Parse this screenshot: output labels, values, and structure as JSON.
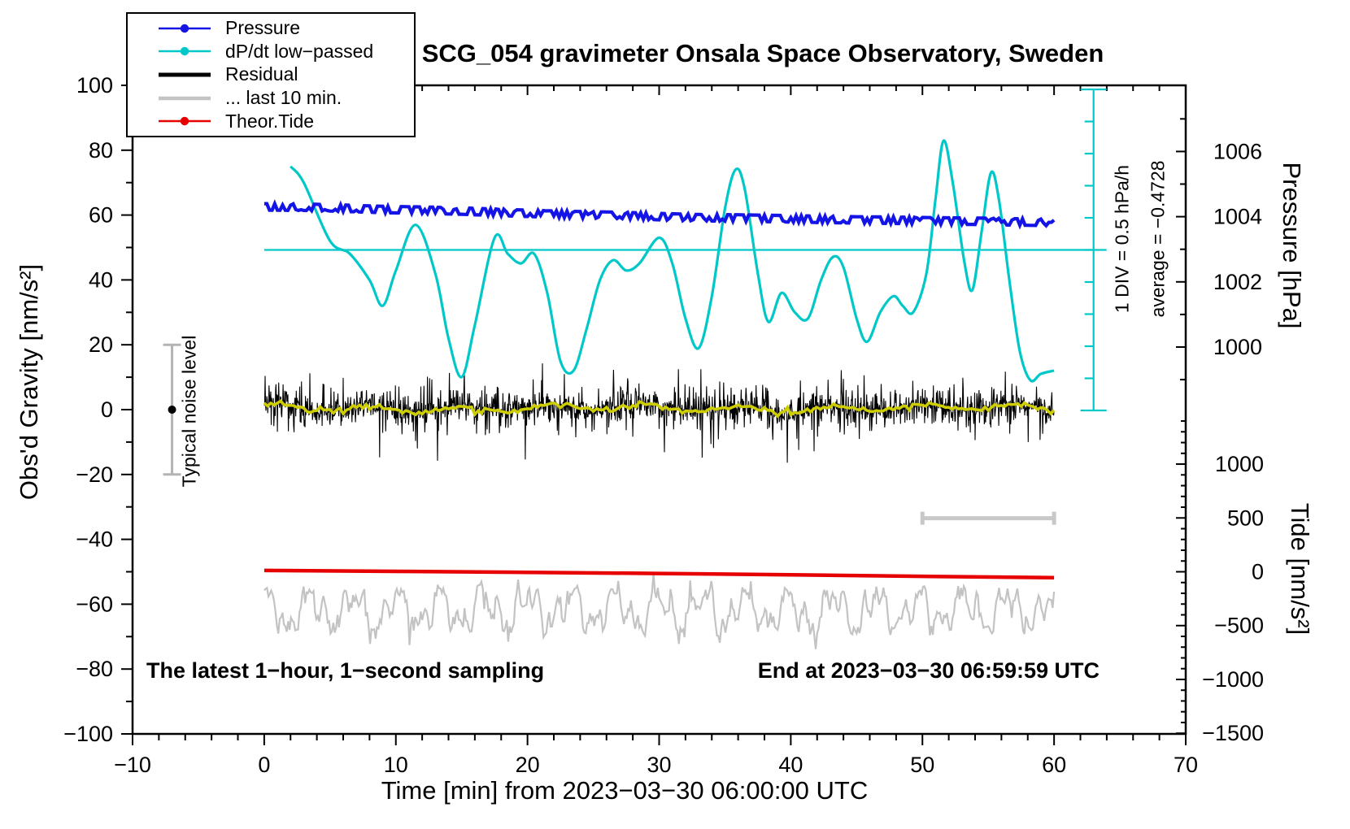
{
  "title": "SCG_054 gravimeter Onsala Space Observatory, Sweden",
  "legend": {
    "items": [
      {
        "label": "Pressure",
        "color": "#1414e6",
        "marker": true,
        "line_width": 2.5
      },
      {
        "label": "dP/dt low−passed",
        "color": "#00c8c8",
        "marker": true,
        "line_width": 2.5
      },
      {
        "label": "Residual",
        "color": "#000000",
        "marker": false,
        "line_width": 5
      },
      {
        "label": "... last 10 min.",
        "color": "#c3c3c3",
        "marker": false,
        "line_width": 4.5
      },
      {
        "label": "Theor.Tide",
        "color": "#e60000",
        "marker": true,
        "line_width": 2.5
      }
    ]
  },
  "notes": {
    "bottom_left": "The latest 1−hour, 1−second sampling",
    "bottom_right": "End at 2023−03−30 06:59:59 UTC"
  },
  "chart_data": {
    "type": "line",
    "title": "SCG_054 gravimeter Onsala Space Observatory, Sweden",
    "xlabel": "Time [min] from 2023−03−30 06:00:00 UTC",
    "grid": false,
    "legend_position": "top-left",
    "x_axis": {
      "range": [
        -10,
        70
      ],
      "major_tick": 10,
      "minor_tick": 2
    },
    "y_left": {
      "label": "Obs'd Gravity [nm/s²]",
      "range": [
        -100,
        100
      ],
      "major_tick": 20,
      "minor_tick": 10
    },
    "y_right_pressure": {
      "label": "Pressure [hPa]",
      "major_ticks": [
        1006,
        1004,
        1002,
        1000
      ],
      "minor_step": 1,
      "minor_range": [
        999,
        1007
      ],
      "gravity_map": {
        "p_ref": 1004,
        "g_ref": 59.5,
        "g_per_hpa": 10.05
      }
    },
    "y_right_tide": {
      "label": "Tide [nm/s²]",
      "major_ticks": [
        1000,
        500,
        0,
        -500,
        -1000,
        -1500
      ],
      "minor_step": 100,
      "minor_range": [
        -1500,
        1400
      ],
      "gravity_map": {
        "t_ref": 0,
        "g_ref": -50,
        "g_per_500": 16.6
      }
    },
    "series": {
      "pressure": {
        "name": "Pressure",
        "unit": "hPa",
        "color": "#1414e6",
        "points_t_hpa": [
          [
            0,
            1004.3
          ],
          [
            3,
            1004.29
          ],
          [
            6,
            1004.26
          ],
          [
            9,
            1004.22
          ],
          [
            12,
            1004.2
          ],
          [
            15,
            1004.17
          ],
          [
            18,
            1004.13
          ],
          [
            21,
            1004.09
          ],
          [
            24,
            1004.06
          ],
          [
            27,
            1004.04
          ],
          [
            30,
            1004.0
          ],
          [
            33,
            1003.97
          ],
          [
            36,
            1003.96
          ],
          [
            39,
            1003.94
          ],
          [
            42,
            1003.92
          ],
          [
            45,
            1003.9
          ],
          [
            48,
            1003.89
          ],
          [
            51,
            1003.87
          ],
          [
            54,
            1003.86
          ],
          [
            57,
            1003.84
          ],
          [
            60,
            1003.82
          ]
        ]
      },
      "dpdt": {
        "name": "dP/dt low−passed",
        "unit": "hPa/h",
        "color": "#00c8c8",
        "gravity_map": {
          "v_ref": 0,
          "g_ref": 49.25,
          "g_per_unit": 19.8
        },
        "points_t_hpah": [
          [
            2,
            1.3
          ],
          [
            3,
            1.05
          ],
          [
            5,
            0.14
          ],
          [
            6.5,
            -0.06
          ],
          [
            8,
            -0.47
          ],
          [
            9,
            -0.87
          ],
          [
            10,
            -0.32
          ],
          [
            11.5,
            0.39
          ],
          [
            13,
            -0.37
          ],
          [
            14,
            -1.38
          ],
          [
            15,
            -1.98
          ],
          [
            16,
            -1.17
          ],
          [
            17.5,
            0.19
          ],
          [
            18.5,
            -0.06
          ],
          [
            19.5,
            -0.21
          ],
          [
            20.5,
            -0.06
          ],
          [
            21.5,
            -0.67
          ],
          [
            22.5,
            -1.73
          ],
          [
            23.5,
            -1.88
          ],
          [
            24.5,
            -1.22
          ],
          [
            25.5,
            -0.47
          ],
          [
            26.5,
            -0.16
          ],
          [
            27.5,
            -0.32
          ],
          [
            28.5,
            -0.21
          ],
          [
            30,
            0.19
          ],
          [
            31,
            -0.21
          ],
          [
            32,
            -1.07
          ],
          [
            33,
            -1.53
          ],
          [
            34,
            -0.72
          ],
          [
            35,
            0.64
          ],
          [
            35.8,
            1.25
          ],
          [
            36.5,
            0.95
          ],
          [
            37.5,
            -0.37
          ],
          [
            38.3,
            -1.12
          ],
          [
            39.3,
            -0.67
          ],
          [
            40.3,
            -0.97
          ],
          [
            41.3,
            -1.07
          ],
          [
            42.3,
            -0.47
          ],
          [
            43.2,
            -0.11
          ],
          [
            44,
            -0.27
          ],
          [
            45,
            -1.07
          ],
          [
            45.8,
            -1.43
          ],
          [
            46.8,
            -0.97
          ],
          [
            47.8,
            -0.72
          ],
          [
            48.5,
            -0.87
          ],
          [
            49.3,
            -0.97
          ],
          [
            50.3,
            -0.37
          ],
          [
            51,
            0.8
          ],
          [
            51.6,
            1.7
          ],
          [
            52.3,
            1.05
          ],
          [
            53.2,
            -0.21
          ],
          [
            53.8,
            -0.62
          ],
          [
            54.5,
            0.29
          ],
          [
            55.2,
            1.2
          ],
          [
            55.8,
            0.8
          ],
          [
            56.6,
            -0.47
          ],
          [
            57.4,
            -1.58
          ],
          [
            58.2,
            -2.03
          ],
          [
            59,
            -1.93
          ],
          [
            60,
            -1.88
          ]
        ]
      },
      "residual": {
        "name": "Residual",
        "unit": "nm/s²",
        "color": "#000000",
        "smoothed_color": "#cdcd00",
        "t_range": [
          0,
          60
        ],
        "center_nms2": 0.4,
        "typical_amplitude_nms2": 6,
        "max_spike_nms2": 15.5,
        "synthetic_noise": true,
        "seed": 42
      },
      "residual_last10": {
        "name": "... last 10 min.",
        "unit": "nm/s²",
        "color": "#c3c3c3",
        "t_range": [
          0,
          60
        ],
        "center_gravity_nms2": -62,
        "amplitude_nms2": 9,
        "synthetic_noise": true,
        "seed": 7
      },
      "theor_tide": {
        "name": "Theor.Tide",
        "unit": "nm/s² (tide axis)",
        "color": "#e60000",
        "points_t_tide": [
          [
            0,
            12
          ],
          [
            10,
            4
          ],
          [
            20,
            -5
          ],
          [
            30,
            -16
          ],
          [
            40,
            -28
          ],
          [
            50,
            -42
          ],
          [
            60,
            -55
          ]
        ]
      }
    },
    "annotations": {
      "noise_errorbar": {
        "label": "Typical noise level",
        "t": -7,
        "center": 0,
        "plus_minus": 20,
        "bar_color": "#b4b4b4",
        "dot_color": "#000000"
      },
      "duration_bar": {
        "t_start": 50,
        "t_end": 60,
        "gravity": -33.5,
        "color": "#c8c8c8"
      },
      "dpdt_scale": {
        "t": 63,
        "top_gravity": 98.75,
        "bottom_gravity": -0.25,
        "divisions": 10,
        "div_label": "1 DIV = 0.5 hPa/h",
        "average_label": "average = −0.4728",
        "average_hpa_per_h": -0.4728,
        "zero_line_gravity": 49.25,
        "zero_line_t_start": 0,
        "color": "#00c8c8"
      },
      "texts": {
        "bottom_left": "The latest 1−hour, 1−second sampling",
        "bottom_right": "End at 2023−03−30 06:59:59 UTC"
      }
    }
  }
}
